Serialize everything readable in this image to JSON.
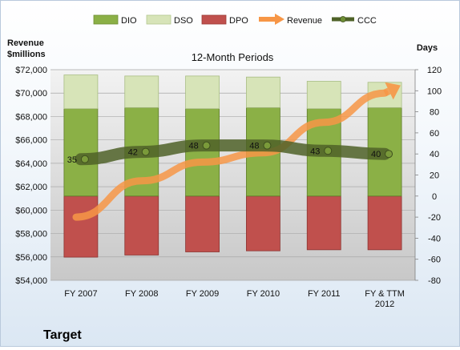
{
  "chart_data": {
    "type": "bar",
    "title": "12-Month Periods",
    "company": "Target",
    "left_axis_title": "Revenue\n$millions",
    "right_axis_title": "Days",
    "categories": [
      "FY 2007",
      "FY 2008",
      "FY 2009",
      "FY 2010",
      "FY 2011",
      "FY & TTM\n2012"
    ],
    "left_ylim": [
      54000,
      72000
    ],
    "left_ticks": [
      "$54,000",
      "$56,000",
      "$58,000",
      "$60,000",
      "$62,000",
      "$64,000",
      "$66,000",
      "$68,000",
      "$70,000",
      "$72,000"
    ],
    "right_ylim": [
      -80,
      120
    ],
    "right_ticks": [
      "-80",
      "-60",
      "-40",
      "-20",
      "0",
      "20",
      "40",
      "60",
      "80",
      "100",
      "120"
    ],
    "legend_position": "top",
    "legend": [
      {
        "key": "dio",
        "label": "DIO",
        "kind": "bar"
      },
      {
        "key": "dso",
        "label": "DSO",
        "kind": "bar"
      },
      {
        "key": "dpo",
        "label": "DPO",
        "kind": "bar"
      },
      {
        "key": "revenue",
        "label": "Revenue",
        "kind": "arrow"
      },
      {
        "key": "ccc",
        "label": "CCC",
        "kind": "line"
      }
    ],
    "series": [
      {
        "key": "dio",
        "name": "DIO",
        "axis": "right",
        "color": "#8bb046",
        "values": [
          83,
          84,
          83,
          84,
          83,
          84
        ]
      },
      {
        "key": "dso",
        "name": "DSO",
        "axis": "right",
        "color": "#d7e4b8",
        "values": [
          32,
          30,
          31,
          29,
          26,
          24
        ]
      },
      {
        "key": "dpo",
        "name": "DPO",
        "axis": "right",
        "color": "#c0504d",
        "values": [
          -58,
          -56,
          -53,
          -52,
          -51,
          -51
        ]
      },
      {
        "key": "revenue",
        "name": "Revenue",
        "axis": "left",
        "color": "#f79646",
        "values": [
          59400,
          62500,
          64100,
          64900,
          67500,
          70000
        ]
      },
      {
        "key": "ccc",
        "name": "CCC",
        "axis": "right",
        "color": "#4f6228",
        "values": [
          35,
          42,
          48,
          48,
          43,
          40
        ],
        "labels": [
          "35",
          "42",
          "48",
          "48",
          "43",
          "40"
        ]
      }
    ]
  }
}
